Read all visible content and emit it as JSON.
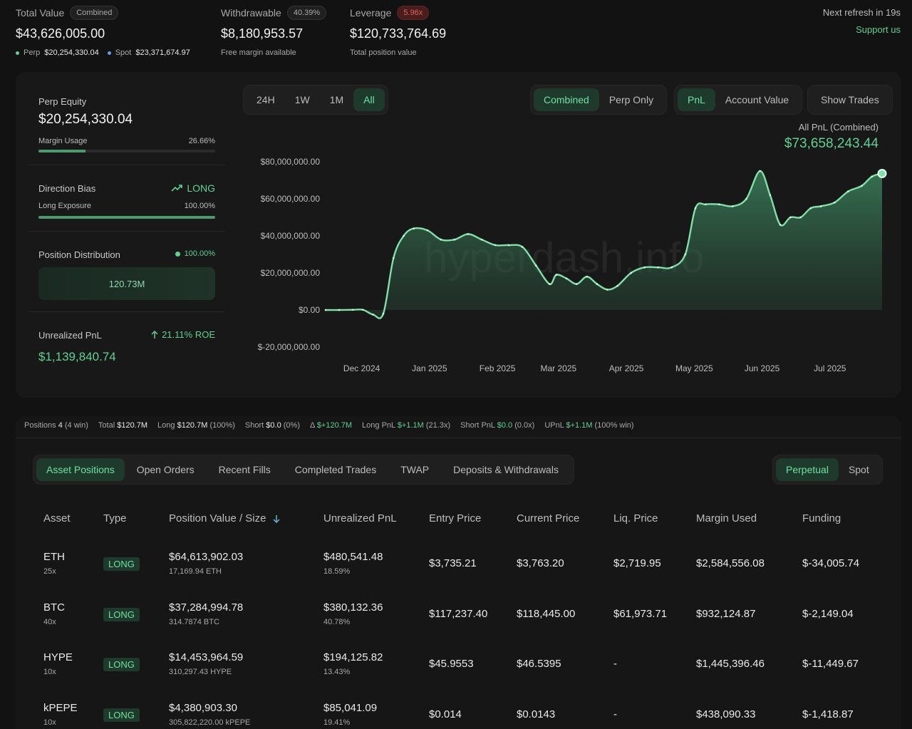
{
  "top": {
    "total_value": {
      "label": "Total Value",
      "badge": "Combined",
      "value": "$43,626,005.00",
      "perp_label": "Perp",
      "perp_value": "$20,254,330.04",
      "spot_label": "Spot",
      "spot_value": "$23,371,674.97"
    },
    "withdrawable": {
      "label": "Withdrawable",
      "badge": "40.39%",
      "value": "$8,180,953.57",
      "sub": "Free margin available"
    },
    "leverage": {
      "label": "Leverage",
      "badge": "5.96x",
      "value": "$120,733,764.69",
      "sub": "Total position value"
    },
    "refresh": "Next refresh in 19s",
    "support": "Support us"
  },
  "left_panel": {
    "perp_equity_label": "Perp Equity",
    "perp_equity_value": "$20,254,330.04",
    "margin_usage_label": "Margin Usage",
    "margin_usage_value": "26.66%",
    "margin_usage_fraction": 0.2666,
    "direction_bias_label": "Direction Bias",
    "direction_bias_value": "LONG",
    "long_exposure_label": "Long Exposure",
    "long_exposure_value": "100.00%",
    "long_exposure_fraction": 1.0,
    "position_distribution_label": "Position Distribution",
    "position_distribution_value": "100.00%",
    "distribution_bar_value": "120.73M",
    "unrealized_pnl_label": "Unrealized PnL",
    "roe": "21.11% ROE",
    "unrealized_pnl_value": "$1,139,840.74"
  },
  "chart_controls": {
    "ranges": [
      "24H",
      "1W",
      "1M",
      "All"
    ],
    "active_range": "All",
    "modes": [
      "Combined",
      "Perp Only"
    ],
    "metrics": [
      "PnL",
      "Account Value"
    ],
    "show_trades": "Show Trades"
  },
  "chart_header": {
    "label": "All PnL (Combined)",
    "value": "$73,658,243.44"
  },
  "watermark": "hyperdash.info",
  "chart_data": {
    "type": "area",
    "title": "All PnL (Combined)",
    "xlabel": "",
    "ylabel": "",
    "ylim": [
      -20000000,
      80000000
    ],
    "y_ticks": [
      "$80,000,000.00",
      "$60,000,000.00",
      "$40,000,000.00",
      "$20,000,000.00",
      "$0.00",
      "$-20,000,000.00"
    ],
    "y_tick_values": [
      80000000,
      60000000,
      40000000,
      20000000,
      0,
      -20000000
    ],
    "x_ticks": [
      "Dec 2024",
      "Jan 2025",
      "Feb 2025",
      "Mar 2025",
      "Apr 2025",
      "May 2025",
      "Jun 2025",
      "Jul 2025"
    ],
    "x_tick_positions": [
      0.5,
      1.5,
      2.5,
      3.4,
      4.4,
      5.4,
      6.4,
      7.4
    ],
    "x": [
      0,
      0.2,
      0.4,
      0.55,
      0.7,
      0.85,
      1.0,
      1.15,
      1.3,
      1.5,
      1.7,
      1.9,
      2.1,
      2.3,
      2.5,
      2.7,
      2.9,
      3.1,
      3.3,
      3.4,
      3.55,
      3.7,
      3.85,
      4.0,
      4.15,
      4.3,
      4.5,
      4.7,
      4.9,
      5.1,
      5.3,
      5.45,
      5.6,
      5.8,
      6.0,
      6.2,
      6.4,
      6.55,
      6.7,
      6.85,
      7.0,
      7.15,
      7.3,
      7.5,
      7.7,
      7.9,
      8.05,
      8.2
    ],
    "y": [
      0,
      0,
      100000,
      100000,
      -2500000,
      -2000000,
      28000000,
      40000000,
      44000000,
      43000000,
      38000000,
      38000000,
      41000000,
      38000000,
      35000000,
      35000000,
      34000000,
      24000000,
      14000000,
      19000000,
      17000000,
      14000000,
      18000000,
      14000000,
      11000000,
      13000000,
      20000000,
      23000000,
      23000000,
      23000000,
      30000000,
      55000000,
      57000000,
      57000000,
      56000000,
      60000000,
      75000000,
      62000000,
      46000000,
      50000000,
      50000000,
      55000000,
      56000000,
      58000000,
      64000000,
      67000000,
      72000000,
      73658243.44
    ],
    "series": [
      {
        "values_ref": "y"
      }
    ],
    "grid": false,
    "legend": "none"
  },
  "summary": {
    "positions_label": "Positions",
    "positions_value": "4",
    "positions_win": "(4 win)",
    "total_label": "Total",
    "total_value": "$120.7M",
    "long_label": "Long",
    "long_value": "$120.7M",
    "long_pct": "(100%)",
    "short_label": "Short",
    "short_value": "$0.0",
    "short_pct": "(0%)",
    "delta": "Δ",
    "delta_value": "$+120.7M",
    "long_pnl_label": "Long PnL",
    "long_pnl_value": "$+1.1M",
    "long_pnl_ratio": "(21.3x)",
    "short_pnl_label": "Short PnL",
    "short_pnl_value": "$0.0",
    "short_pnl_ratio": "(0.0x)",
    "upnl_label": "UPnL",
    "upnl_value": "$+1.1M",
    "upnl_win": "(100% win)"
  },
  "tabs": [
    "Asset Positions",
    "Open Orders",
    "Recent Fills",
    "Completed Trades",
    "TWAP",
    "Deposits & Withdrawals"
  ],
  "market_tabs": [
    "Perpetual",
    "Spot"
  ],
  "table": {
    "headers": [
      "Asset",
      "Type",
      "Position Value / Size",
      "Unrealized PnL",
      "Entry Price",
      "Current Price",
      "Liq. Price",
      "Margin Used",
      "Funding"
    ],
    "sort_icon": "arrow-down",
    "rows": [
      {
        "asset": "ETH",
        "leverage": "25x",
        "type": "LONG",
        "value": "$64,613,902.03",
        "size": "17,169.94 ETH",
        "pnl": "$480,541.48",
        "pnl_pct": "18.59%",
        "entry": "$3,735.21",
        "current": "$3,763.20",
        "liq": "$2,719.95",
        "margin": "$2,584,556.08",
        "funding": "$-34,005.74"
      },
      {
        "asset": "BTC",
        "leverage": "40x",
        "type": "LONG",
        "value": "$37,284,994.78",
        "size": "314.7874 BTC",
        "pnl": "$380,132.36",
        "pnl_pct": "40.78%",
        "entry": "$117,237.40",
        "current": "$118,445.00",
        "liq": "$61,973.71",
        "margin": "$932,124.87",
        "funding": "$-2,149.04"
      },
      {
        "asset": "HYPE",
        "leverage": "10x",
        "type": "LONG",
        "value": "$14,453,964.59",
        "size": "310,297.43 HYPE",
        "pnl": "$194,125.82",
        "pnl_pct": "13.43%",
        "entry": "$45.9553",
        "current": "$46.5395",
        "liq": "-",
        "margin": "$1,445,396.46",
        "funding": "$-11,449.67"
      },
      {
        "asset": "kPEPE",
        "leverage": "10x",
        "type": "LONG",
        "value": "$4,380,903.30",
        "size": "305,822,220.00 kPEPE",
        "pnl": "$85,041.09",
        "pnl_pct": "19.41%",
        "entry": "$0.014",
        "current": "$0.0143",
        "liq": "-",
        "margin": "$438,090.33",
        "funding": "$-1,418.87"
      }
    ]
  }
}
